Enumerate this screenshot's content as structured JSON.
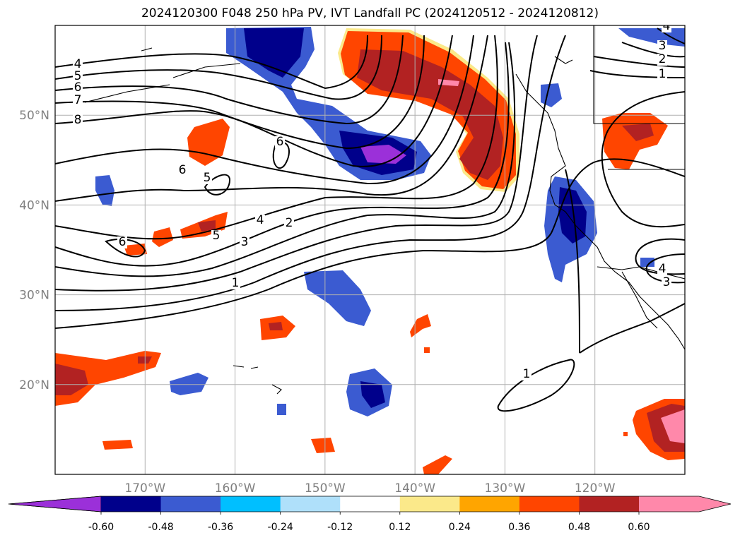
{
  "title": "2024120300 F048 250 hPa PV, IVT Landfall PC (2024120512 - 2024120812)",
  "map": {
    "lon_range": [
      -180,
      -110
    ],
    "lat_range": [
      10,
      60
    ],
    "lat_ticks": [
      {
        "value": 20,
        "label": "20°N"
      },
      {
        "value": 30,
        "label": "30°N"
      },
      {
        "value": 40,
        "label": "40°N"
      },
      {
        "value": 50,
        "label": "50°N"
      }
    ],
    "lon_ticks": [
      {
        "value": -170,
        "label": "170°W"
      },
      {
        "value": -160,
        "label": "160°W"
      },
      {
        "value": -150,
        "label": "150°W"
      },
      {
        "value": -140,
        "label": "140°W"
      },
      {
        "value": -130,
        "label": "130°W"
      },
      {
        "value": -120,
        "label": "120°W"
      }
    ],
    "gridlines": true,
    "contour_labels": [
      "4",
      "5",
      "6",
      "7",
      "8",
      "6",
      "6",
      "5",
      "6",
      "5",
      "4",
      "3",
      "2",
      "1",
      "4",
      "3",
      "2",
      "1",
      "4",
      "3",
      "1"
    ]
  },
  "colorbar": {
    "extend": "both",
    "levels": [
      "-0.60",
      "-0.48",
      "-0.36",
      "-0.24",
      "-0.12",
      "0.12",
      "0.24",
      "0.36",
      "0.48",
      "0.60"
    ],
    "colors": [
      "#9b30d9",
      "#00008b",
      "#3b5bd1",
      "#00bfff",
      "#afe0fa",
      "#ffffff",
      "#fbe98a",
      "#ffa500",
      "#ff4500",
      "#b22222",
      "#ff88aa"
    ]
  }
}
